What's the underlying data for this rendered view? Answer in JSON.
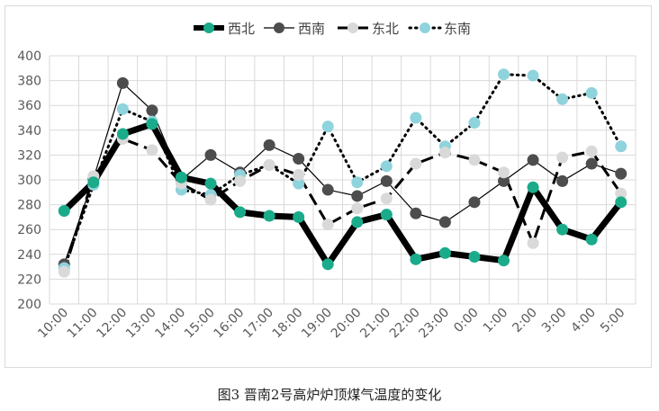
{
  "caption": "图3   晋南2号高炉炉顶煤气温度的变化",
  "chart_data": {
    "type": "line",
    "categories": [
      "10:00",
      "11:00",
      "12:00",
      "13:00",
      "14:00",
      "15:00",
      "16:00",
      "17:00",
      "18:00",
      "19:00",
      "20:00",
      "21:00",
      "22:00",
      "23:00",
      "0:00",
      "1:00",
      "2:00",
      "3:00",
      "4:00",
      "5:00"
    ],
    "ylim": [
      200,
      400
    ],
    "yticks": [
      200,
      220,
      240,
      260,
      280,
      300,
      320,
      340,
      360,
      380,
      400
    ],
    "grid": true,
    "legend_position": "top",
    "series": [
      {
        "name": "西北",
        "color": "#1aab8a",
        "line_color": "#000000",
        "line_style": "solid-thick",
        "values": [
          275,
          298,
          337,
          345,
          302,
          297,
          274,
          271,
          270,
          232,
          266,
          272,
          236,
          241,
          238,
          235,
          294,
          260,
          252,
          282
        ]
      },
      {
        "name": "西南",
        "color": "#4d4d4d",
        "line_color": "#000000",
        "line_style": "solid-thin",
        "values": [
          232,
          301,
          378,
          356,
          300,
          320,
          306,
          328,
          317,
          292,
          287,
          299,
          273,
          266,
          282,
          299,
          316,
          299,
          313,
          305
        ]
      },
      {
        "name": "东北",
        "color": "#d9d9d9",
        "line_color": "#000000",
        "line_style": "dashed",
        "values": [
          226,
          303,
          333,
          324,
          297,
          284,
          299,
          312,
          304,
          264,
          277,
          285,
          313,
          322,
          316,
          306,
          249,
          318,
          323,
          289
        ]
      },
      {
        "name": "东南",
        "color": "#8fd3dc",
        "line_color": "#000000",
        "line_style": "dotted",
        "values": [
          229,
          296,
          357,
          347,
          292,
          288,
          304,
          312,
          297,
          343,
          298,
          311,
          350,
          327,
          346,
          385,
          384,
          365,
          370,
          327
        ]
      }
    ]
  }
}
